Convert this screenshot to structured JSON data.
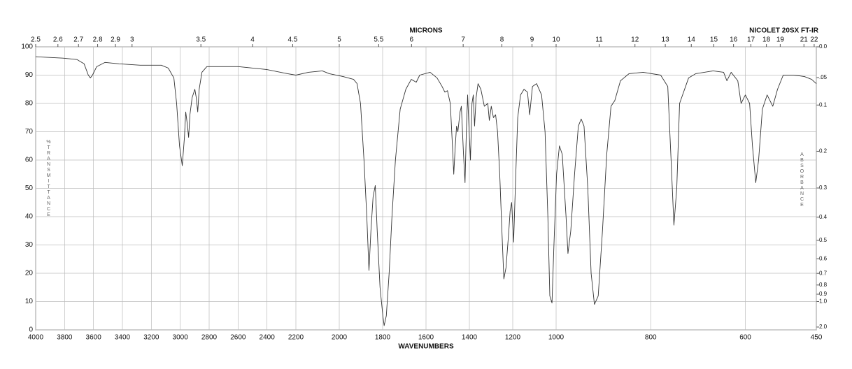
{
  "chart_data": {
    "type": "line",
    "title": "NICOLET 20SX FT-IR",
    "x_label": "WAVENUMBERS",
    "x2_label": "MICRONS",
    "y_label": "%TRANSMITTANCE",
    "y2_label": "ABSORBANCE",
    "color": "#333333",
    "grid": true,
    "xlim": [
      4000,
      450
    ],
    "xscale_breaks": [
      2200,
      1000
    ],
    "xticks": [
      4000,
      3800,
      3600,
      3400,
      3200,
      3000,
      2800,
      2600,
      2400,
      2200,
      2000,
      1800,
      1600,
      1400,
      1200,
      1000,
      800,
      600,
      450
    ],
    "x2ticks": [
      2.5,
      2.6,
      2.7,
      2.8,
      2.9,
      3,
      3.5,
      4,
      4.5,
      5,
      5.5,
      6,
      7,
      8,
      9,
      10,
      11,
      12,
      13,
      14,
      15,
      16,
      17,
      18,
      19,
      21,
      22
    ],
    "ylim": [
      0,
      100
    ],
    "yticks": [
      0,
      10,
      20,
      30,
      40,
      50,
      60,
      70,
      80,
      90,
      100
    ],
    "y2ticks": [
      {
        "value": 0,
        "label": "0.0"
      },
      {
        "value": 0.05,
        "label": ".05"
      },
      0.1,
      0.2,
      0.3,
      0.4,
      0.5,
      0.6,
      0.7,
      0.8,
      0.9,
      {
        "value": 1,
        "label": "1.0"
      },
      {
        "value": 2,
        "label": "2.0"
      }
    ],
    "x": [
      4000,
      3811,
      3714,
      3665,
      3636,
      3622,
      3607,
      3578,
      3520,
      3423,
      3277,
      3131,
      3083,
      3044,
      3025,
      3005,
      2986,
      2971,
      2962,
      2952,
      2942,
      2933,
      2918,
      2899,
      2889,
      2879,
      2869,
      2850,
      2816,
      2598,
      2404,
      2258,
      2200,
      2142,
      2078,
      2046,
      1982,
      1934,
      1918,
      1902,
      1886,
      1873,
      1863,
      1854,
      1844,
      1834,
      1825,
      1812,
      1799,
      1793,
      1783,
      1770,
      1757,
      1741,
      1719,
      1693,
      1668,
      1645,
      1629,
      1581,
      1549,
      1526,
      1513,
      1501,
      1488,
      1478,
      1472,
      1465,
      1459,
      1453,
      1443,
      1437,
      1427,
      1420,
      1414,
      1408,
      1401,
      1395,
      1388,
      1382,
      1376,
      1369,
      1360,
      1347,
      1331,
      1315,
      1308,
      1299,
      1289,
      1279,
      1270,
      1260,
      1250,
      1241,
      1231,
      1218,
      1212,
      1205,
      1196,
      1186,
      1177,
      1164,
      1148,
      1132,
      1122,
      1109,
      1090,
      1067,
      1051,
      1038,
      1029,
      1019,
      1010,
      999,
      993,
      987,
      979,
      975,
      969,
      961,
      953,
      947,
      941,
      933,
      926,
      919,
      911,
      902,
      893,
      884,
      876,
      864,
      846,
      816,
      779,
      764,
      757,
      751,
      745,
      739,
      720,
      705,
      668,
      646,
      639,
      630,
      616,
      609,
      600,
      591,
      585,
      578,
      572,
      564,
      554,
      542,
      532,
      520,
      498,
      475,
      460,
      450
    ],
    "values": [
      96.5,
      96,
      95.5,
      94,
      90,
      89,
      90,
      93,
      94.5,
      94,
      93.5,
      93.5,
      92.5,
      89,
      80,
      65,
      58,
      68,
      77,
      73,
      68,
      76,
      82,
      85,
      82,
      77,
      85,
      91,
      93,
      93,
      92,
      90.5,
      90,
      91,
      91.5,
      90.5,
      89.5,
      88.5,
      87,
      80,
      60,
      40,
      21,
      35,
      47,
      51,
      35,
      15,
      5,
      1.5,
      5,
      20,
      40,
      60,
      78,
      85,
      88.5,
      87.5,
      90,
      91,
      89,
      86,
      84,
      84.5,
      80,
      65,
      55,
      65,
      72,
      70,
      77,
      79,
      62,
      52,
      70,
      83,
      70,
      60,
      80,
      83,
      72,
      82,
      87,
      85,
      79,
      80,
      74,
      79,
      75,
      76,
      70,
      55,
      35,
      18,
      22,
      35,
      42,
      45,
      31,
      55,
      75,
      83,
      85,
      84,
      76,
      86,
      87,
      83,
      70,
      40,
      12,
      9.5,
      30,
      55,
      65,
      62,
      40,
      27,
      35,
      55,
      72,
      74.5,
      72,
      50,
      20,
      9,
      12,
      35,
      62,
      79,
      81,
      88,
      90.5,
      91,
      90,
      86,
      60,
      37,
      50,
      80,
      89,
      90.5,
      91.5,
      91,
      88,
      91,
      88,
      80,
      83,
      80,
      65,
      52,
      60,
      78,
      83,
      79,
      85,
      90,
      90,
      89.5,
      88.5,
      87
    ]
  }
}
